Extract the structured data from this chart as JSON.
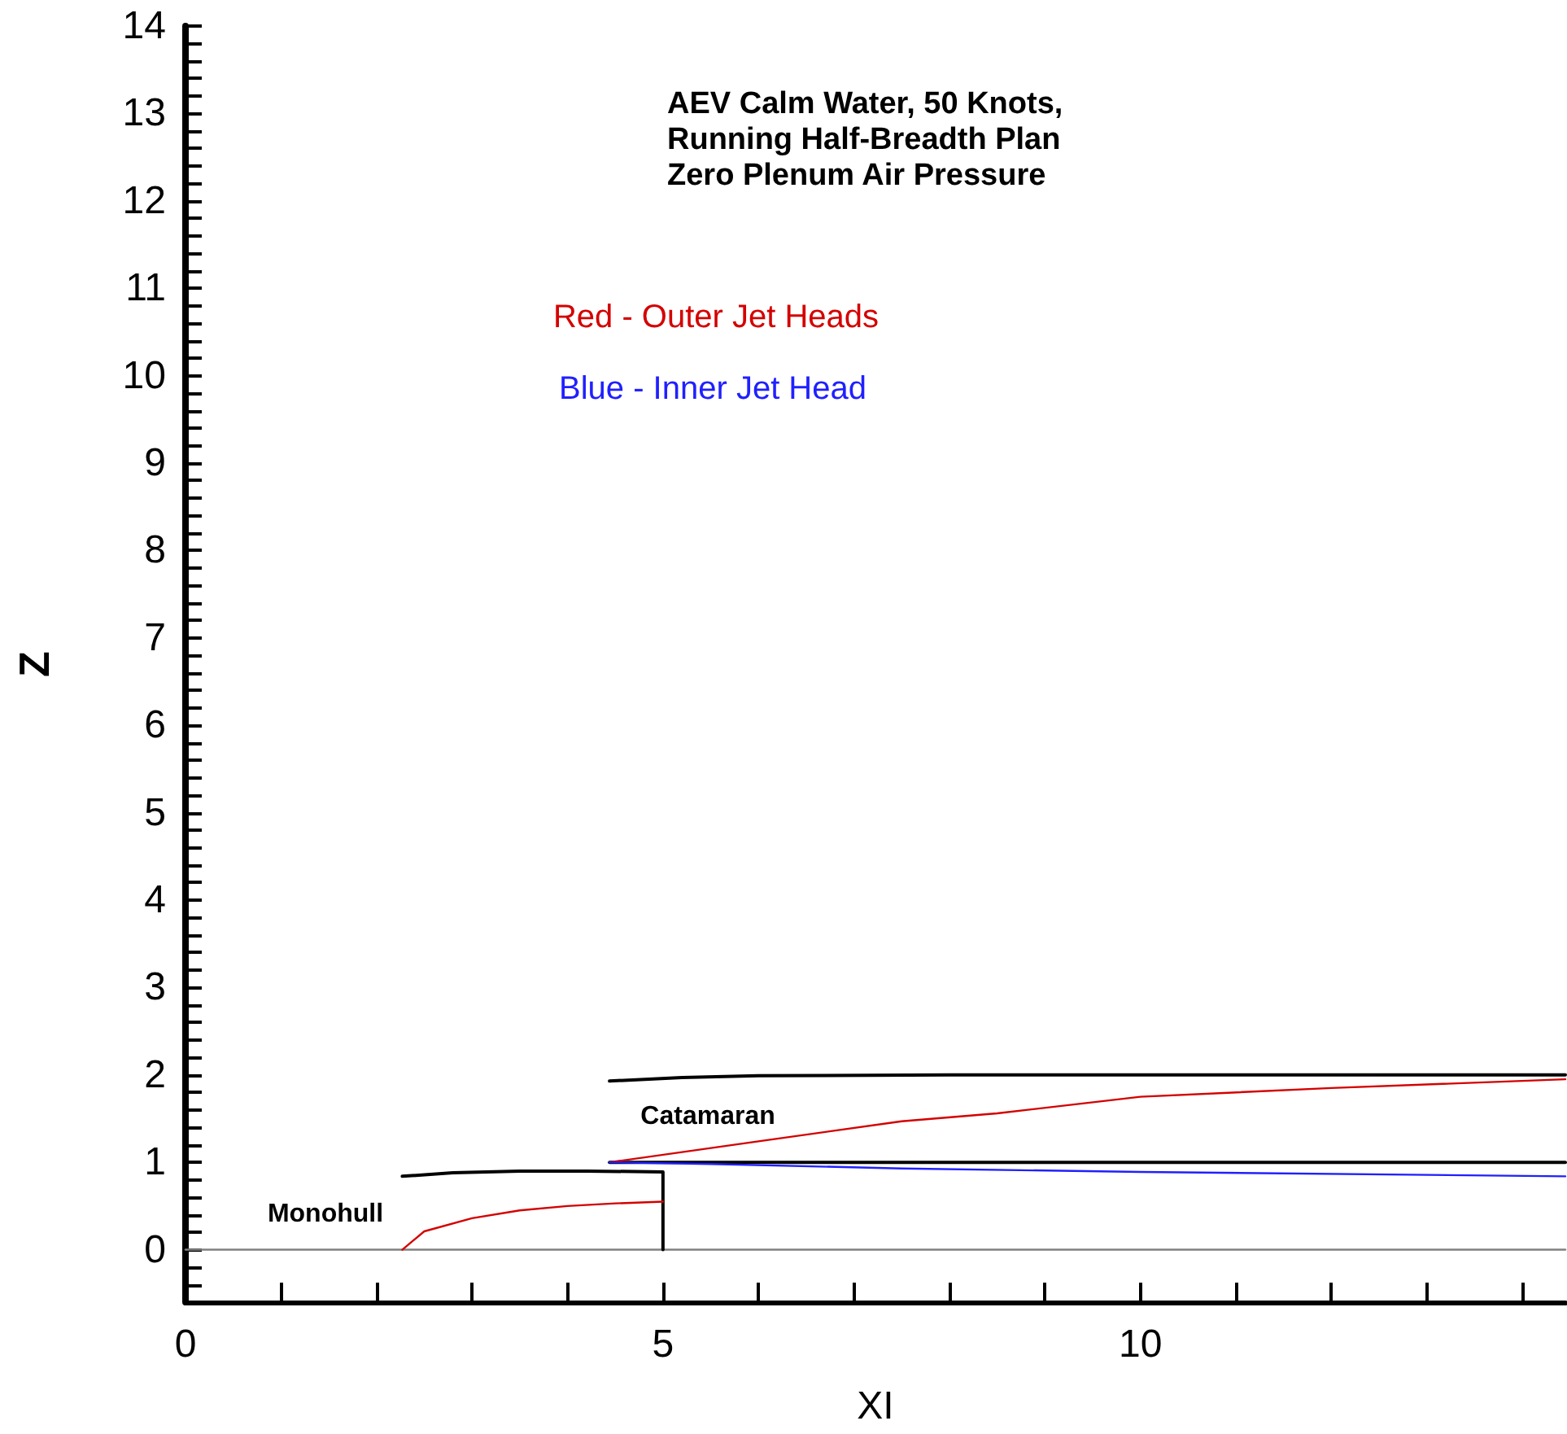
{
  "chart_data": {
    "type": "line",
    "title": "AEV Calm Water, 50 Knots,\nRunning Half-Breadth Plan\nZero Plenum Air Pressure",
    "xlabel": "XI",
    "ylabel": "Z",
    "annotations": [
      "Red - Outer Jet Heads",
      "Blue - Inner Jet Head",
      "Monohull",
      "Catamaran"
    ],
    "series": [
      {
        "color": "#808080",
        "x": [
          0,
          14.45
        ],
        "values": [
          0,
          0
        ]
      },
      {
        "color": "#000000",
        "x": [
          2.27,
          2.8,
          3.5,
          4.2,
          5,
          5
        ],
        "values": [
          0.84,
          0.88,
          0.9,
          0.9,
          0.89,
          0
        ]
      },
      {
        "color": "#d40000",
        "x": [
          2.27,
          2.5,
          3,
          3.5,
          4,
          4.5,
          5
        ],
        "values": [
          0,
          0.21,
          0.36,
          0.45,
          0.5,
          0.53,
          0.55
        ]
      },
      {
        "color": "#000000",
        "x": [
          4.44,
          5.2,
          6,
          8,
          14.45
        ],
        "values": [
          1.93,
          1.97,
          1.99,
          2,
          2
        ]
      },
      {
        "color": "#000000",
        "x": [
          4.44,
          14.45
        ],
        "values": [
          1,
          1
        ]
      },
      {
        "color": "#d40000",
        "x": [
          4.44,
          6,
          7.5,
          8.5,
          10,
          12,
          14.45
        ],
        "values": [
          1,
          1.24,
          1.47,
          1.56,
          1.75,
          1.85,
          1.95
        ]
      },
      {
        "color": "#2020ff",
        "x": [
          4.44,
          5.5,
          7.5,
          10,
          14.45
        ],
        "values": [
          1,
          0.98,
          0.93,
          0.89,
          0.84
        ]
      }
    ],
    "xlim": [
      0,
      14.45
    ],
    "ylim": [
      -0.6,
      14
    ],
    "xticks": [
      0,
      {
        "value": 1,
        "label": null
      },
      {
        "value": 2,
        "label": null
      },
      {
        "value": 3,
        "label": null
      },
      {
        "value": 4,
        "label": null
      },
      5,
      {
        "value": 6,
        "label": null
      },
      {
        "value": 7,
        "label": null
      },
      {
        "value": 8,
        "label": null
      },
      {
        "value": 9,
        "label": null
      },
      10,
      {
        "value": 11,
        "label": null
      },
      {
        "value": 12,
        "label": null
      },
      {
        "value": 13,
        "label": null
      },
      {
        "value": 14,
        "label": null
      }
    ],
    "yticks": [
      {
        "value": -0.4,
        "label": null
      },
      {
        "value": -0.2,
        "label": null
      },
      0,
      {
        "value": 0.2,
        "label": null
      },
      {
        "value": 0.4,
        "label": null
      },
      {
        "value": 0.6,
        "label": null
      },
      {
        "value": 0.8,
        "label": null
      },
      1,
      {
        "value": 1.2,
        "label": null
      },
      {
        "value": 1.4,
        "label": null
      },
      {
        "value": 1.6,
        "label": null
      },
      {
        "value": 1.8,
        "label": null
      },
      2,
      {
        "value": 2.2,
        "label": null
      },
      {
        "value": 2.4,
        "label": null
      },
      {
        "value": 2.6,
        "label": null
      },
      {
        "value": 2.8,
        "label": null
      },
      3,
      {
        "value": 3.2,
        "label": null
      },
      {
        "value": 3.4,
        "label": null
      },
      {
        "value": 3.6,
        "label": null
      },
      {
        "value": 3.8,
        "label": null
      },
      4,
      {
        "value": 4.2,
        "label": null
      },
      {
        "value": 4.4,
        "label": null
      },
      {
        "value": 4.6,
        "label": null
      },
      {
        "value": 4.8,
        "label": null
      },
      5,
      {
        "value": 5.2,
        "label": null
      },
      {
        "value": 5.4,
        "label": null
      },
      {
        "value": 5.6,
        "label": null
      },
      {
        "value": 5.8,
        "label": null
      },
      6,
      {
        "value": 6.2,
        "label": null
      },
      {
        "value": 6.4,
        "label": null
      },
      {
        "value": 6.6,
        "label": null
      },
      {
        "value": 6.8,
        "label": null
      },
      7,
      {
        "value": 7.2,
        "label": null
      },
      {
        "value": 7.4,
        "label": null
      },
      {
        "value": 7.6,
        "label": null
      },
      {
        "value": 7.8,
        "label": null
      },
      8,
      {
        "value": 8.2,
        "label": null
      },
      {
        "value": 8.4,
        "label": null
      },
      {
        "value": 8.6,
        "label": null
      },
      {
        "value": 8.8,
        "label": null
      },
      9,
      {
        "value": 9.2,
        "label": null
      },
      {
        "value": 9.4,
        "label": null
      },
      {
        "value": 9.6,
        "label": null
      },
      {
        "value": 9.8,
        "label": null
      },
      10,
      {
        "value": 10.2,
        "label": null
      },
      {
        "value": 10.4,
        "label": null
      },
      {
        "value": 10.6,
        "label": null
      },
      {
        "value": 10.8,
        "label": null
      },
      11,
      {
        "value": 11.2,
        "label": null
      },
      {
        "value": 11.4,
        "label": null
      },
      {
        "value": 11.6,
        "label": null
      },
      {
        "value": 11.8,
        "label": null
      },
      12,
      {
        "value": 12.2,
        "label": null
      },
      {
        "value": 12.4,
        "label": null
      },
      {
        "value": 12.6,
        "label": null
      },
      {
        "value": 12.8,
        "label": null
      },
      13,
      {
        "value": 13.2,
        "label": null
      },
      {
        "value": 13.4,
        "label": null
      },
      {
        "value": 13.6,
        "label": null
      },
      {
        "value": 13.8,
        "label": null
      },
      14
    ],
    "grid": false,
    "marker": "none",
    "line_style": "solid"
  }
}
